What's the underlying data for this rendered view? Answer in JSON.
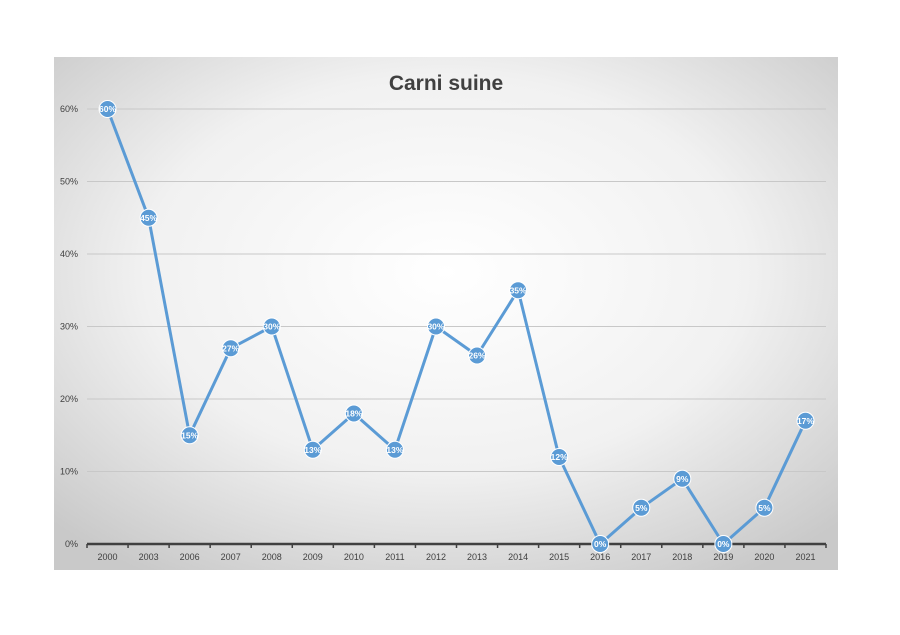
{
  "chart_data": {
    "type": "line",
    "title": "Carni suine",
    "categories": [
      "2000",
      "2003",
      "2006",
      "2007",
      "2008",
      "2009",
      "2010",
      "2011",
      "2012",
      "2013",
      "2014",
      "2015",
      "2016",
      "2017",
      "2018",
      "2019",
      "2020",
      "2021"
    ],
    "series": [
      {
        "values": [
          60,
          45,
          15,
          27,
          30,
          13,
          18,
          13,
          30,
          26,
          35,
          12,
          0,
          5,
          9,
          0,
          5,
          17
        ],
        "labels": [
          "60%",
          "45%",
          "15%",
          "27%",
          "30%",
          "13%",
          "18%",
          "13%",
          "30%",
          "26%",
          "35%",
          "12%",
          "0%",
          "5%",
          "9%",
          "0%",
          "5%",
          "17%"
        ]
      }
    ],
    "y_ticks": [
      "0%",
      "10%",
      "20%",
      "30%",
      "40%",
      "50%",
      "60%"
    ],
    "ylim": [
      0,
      60
    ],
    "grid": true,
    "legend": "none",
    "colors": {
      "series": "#5b9bd5",
      "label_text": "#ffffff",
      "axis": "#404040",
      "grid": "#c8c8c8"
    }
  }
}
